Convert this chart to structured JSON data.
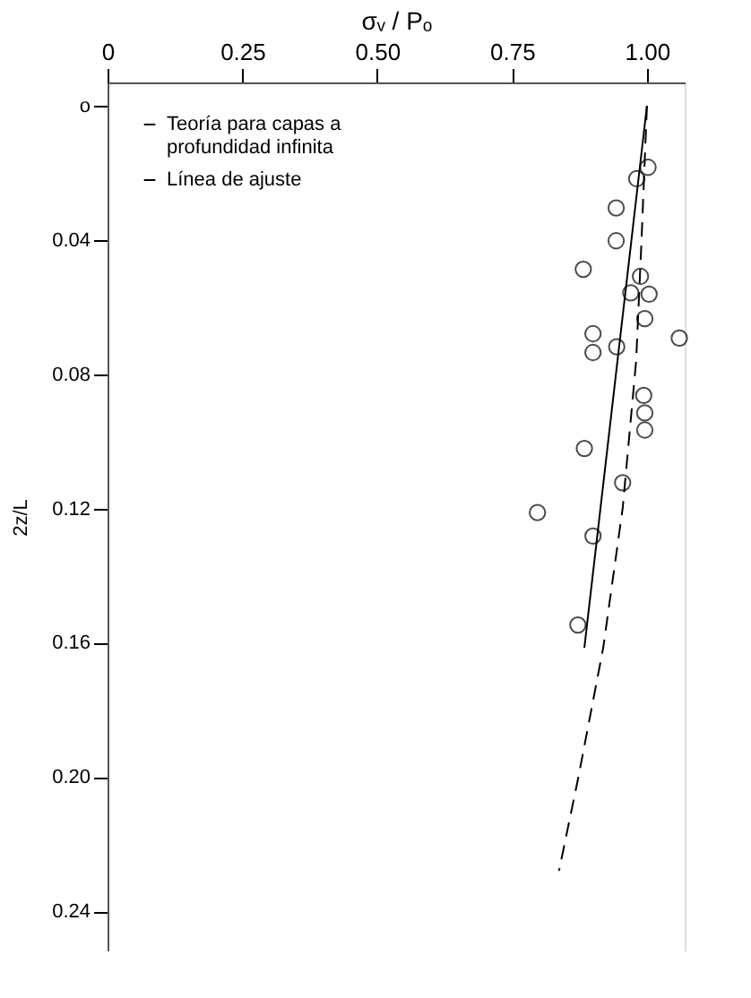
{
  "chart_data": {
    "type": "scatter",
    "xlabel": "σᵥ / Pₒ",
    "ylabel": "2z/L",
    "xlim": [
      0,
      1.07
    ],
    "xticks": [
      0,
      0.25,
      {
        "value": 0.5,
        "label": "0.50"
      },
      0.75,
      {
        "value": 1,
        "label": "1.00"
      }
    ],
    "ylim": [
      0.252,
      -0.007
    ],
    "yticks": [
      {
        "value": 0,
        "label": "o"
      },
      0.04,
      0.08,
      0.12,
      0.16,
      {
        "value": 0.2,
        "label": "0.20"
      },
      0.24
    ],
    "grid": false,
    "legend": "top left",
    "series": [
      {
        "name": "Teoría para capas a profundidad infinita",
        "type": "line",
        "line_style": "dashed",
        "color": "#000000",
        "x": [
          1.0,
          0.99,
          0.98,
          0.955,
          0.919,
          0.873,
          0.837
        ],
        "values": [
          0,
          0.04,
          0.076,
          0.12,
          0.1615,
          0.2,
          0.228
        ]
      },
      {
        "name": "Línea de ajuste",
        "type": "line",
        "line_style": "solid",
        "color": "#000000",
        "x": [
          1.0,
          0.884
        ],
        "values": [
          0,
          0.1615
        ]
      },
      {
        "marker": "circle",
        "color": "#000000",
        "x": [
          1.002,
          0.981,
          0.943,
          0.943,
          0.882,
          0.988,
          0.97,
          1.004,
          0.996,
          0.9,
          0.9,
          0.944,
          1.06,
          0.994,
          0.996,
          0.996,
          0.884,
          0.955,
          0.797,
          0.9,
          0.872
        ],
        "values": [
          0.0183,
          0.0217,
          0.0304,
          0.0402,
          0.0487,
          0.0508,
          0.0557,
          0.0561,
          0.0634,
          0.0679,
          0.0735,
          0.0718,
          0.0692,
          0.0863,
          0.0915,
          0.0966,
          0.1021,
          0.1123,
          0.1212,
          0.1282,
          0.1547
        ]
      }
    ]
  }
}
